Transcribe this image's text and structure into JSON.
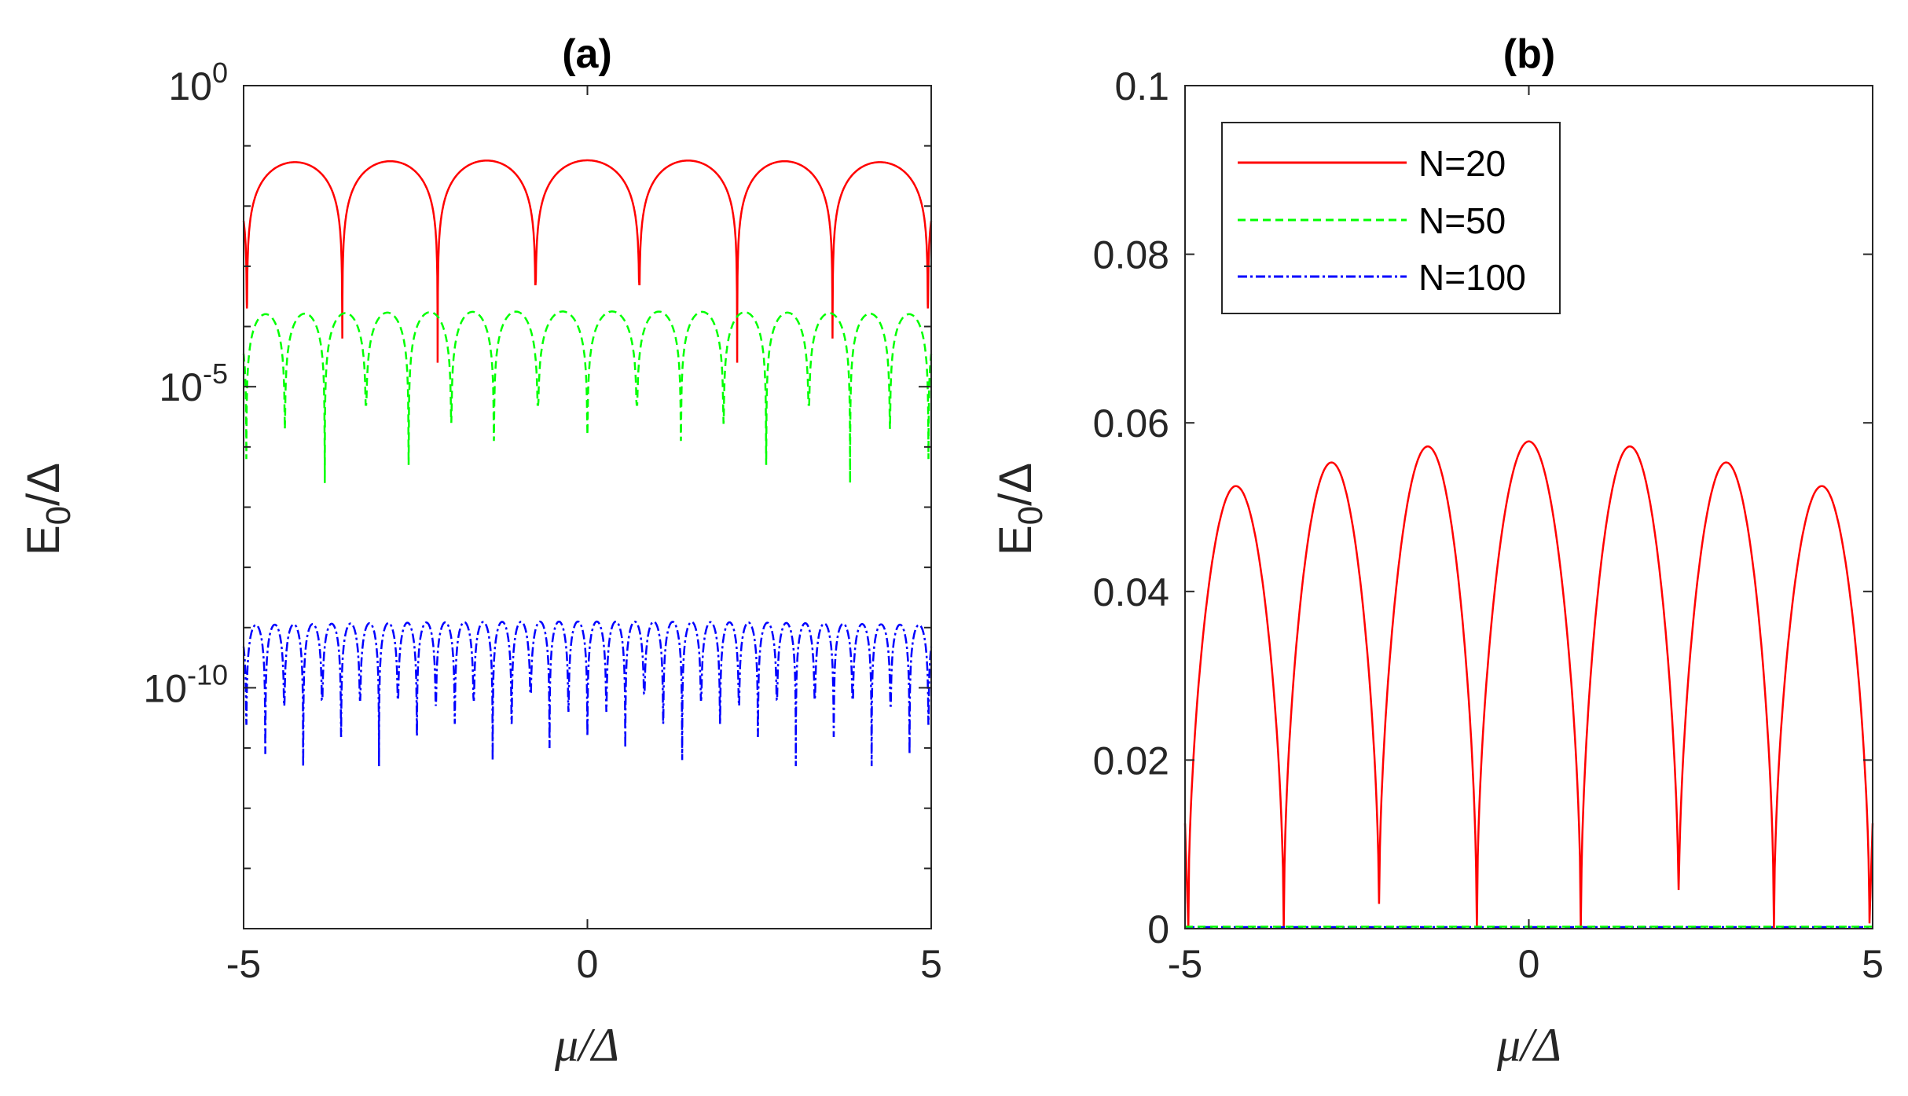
{
  "chart_data": [
    {
      "type": "line",
      "panel": "a",
      "title": "(a)",
      "xlabel": "μ/Δ",
      "ylabel_main": "E",
      "ylabel_sub": "0",
      "ylabel_rest": "/Δ",
      "xlim": [
        -5,
        5
      ],
      "ylim_log10": [
        -14,
        0
      ],
      "yscale": "log",
      "x_ticks": [
        -5,
        0,
        5
      ],
      "x_tick_labels": [
        "-5",
        "0",
        "5"
      ],
      "y_ticks_log10": [
        0,
        -5,
        -10
      ],
      "y_tick_bases": [
        "10",
        "10",
        "10"
      ],
      "y_tick_exponents": [
        "0",
        "-5",
        "-10"
      ],
      "series": [
        {
          "name": "N=20",
          "color": "#ff0000",
          "dash": "solid",
          "peak_log10": -1.24,
          "peak_drop": 0.04,
          "zeros": [
            -4.952,
            -3.565,
            -2.178,
            -0.755,
            0.755,
            2.178,
            3.565,
            4.952
          ],
          "dip_log10": [
            -3.7,
            -4.2,
            -4.6,
            -3.3,
            -3.3,
            -4.6,
            -4.2,
            -3.7
          ]
        },
        {
          "name": "N=50",
          "color": "#00ff00",
          "dash": "dashed",
          "peak_log10": -3.75,
          "peak_drop": 0.05,
          "zeros": [
            -4.96,
            -4.4,
            -3.82,
            -3.22,
            -2.6,
            -1.98,
            -1.36,
            -0.72,
            0.0,
            0.72,
            1.36,
            1.98,
            2.6,
            3.22,
            3.82,
            4.4,
            4.96
          ],
          "dip_log10": [
            -6.2,
            -5.7,
            -6.6,
            -5.3,
            -6.3,
            -5.6,
            -5.9,
            -5.3,
            -5.8,
            -5.3,
            -5.9,
            -5.6,
            -6.3,
            -5.3,
            -6.6,
            -5.7,
            -6.2
          ]
        },
        {
          "name": "N=100",
          "color": "#0000ff",
          "dash": "dashdot",
          "peak_log10": -8.9,
          "peak_drop": 0.06,
          "zeros_count": 37,
          "dip_log10": [
            -10.6,
            -11.1,
            -10.3,
            -11.3,
            -10.2,
            -10.8,
            -10.2,
            -11.3,
            -10.2,
            -10.8,
            -10.3,
            -10.6,
            -10.2,
            -11.2,
            -10.6,
            -10.1,
            -11.0,
            -10.4,
            -10.8,
            -10.4,
            -11.0,
            -10.1,
            -10.6,
            -11.2,
            -10.2,
            -10.6,
            -10.3,
            -10.8,
            -10.2,
            -11.3,
            -10.2,
            -10.8,
            -10.2,
            -11.3,
            -10.3,
            -11.1,
            -10.6
          ]
        }
      ]
    },
    {
      "type": "line",
      "panel": "b",
      "title": "(b)",
      "xlabel": "μ/Δ",
      "ylabel_main": "E",
      "ylabel_sub": "0",
      "ylabel_rest": "/Δ",
      "xlim": [
        -5,
        5
      ],
      "ylim": [
        0,
        0.1
      ],
      "yscale": "linear",
      "x_ticks": [
        -5,
        0,
        5
      ],
      "x_tick_labels": [
        "-5",
        "0",
        "5"
      ],
      "y_ticks": [
        0,
        0.02,
        0.04,
        0.06,
        0.08,
        0.1
      ],
      "y_tick_labels": [
        "0",
        "0.02",
        "0.04",
        "0.06",
        "0.08",
        "0.1"
      ],
      "legend_position": "top-left",
      "series": [
        {
          "name": "N=20",
          "color": "#ff0000",
          "dash": "solid",
          "zeros": [
            -4.952,
            -3.565,
            -2.178,
            -0.755,
            0.755,
            2.178,
            3.565,
            4.952
          ],
          "peaks": [
            -4.26,
            -2.87,
            -1.47,
            0.0,
            1.47,
            2.87,
            4.26
          ],
          "peak_values": [
            0.0525,
            0.0553,
            0.0572,
            0.0578,
            0.0572,
            0.0553,
            0.0525
          ],
          "edge_value": 0.0125
        },
        {
          "name": "N=50",
          "color": "#00ff00",
          "dash": "dashed",
          "value": 5e-05
        },
        {
          "name": "N=100",
          "color": "#0000ff",
          "dash": "dashdot",
          "value": 0.0
        }
      ],
      "legend": [
        "N=20",
        "N=50",
        "N=100"
      ]
    }
  ]
}
